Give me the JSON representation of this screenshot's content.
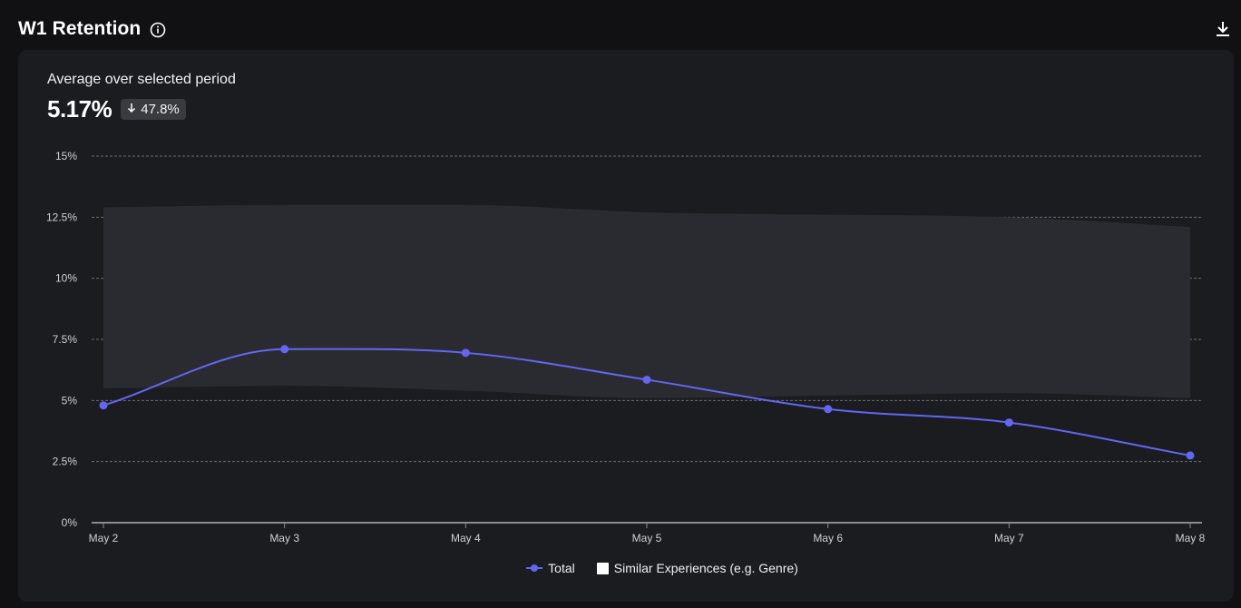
{
  "header": {
    "title": "W1 Retention",
    "info_icon": "info-circle-icon",
    "download_icon": "download-icon"
  },
  "summary": {
    "label": "Average over selected period",
    "value": "5.17%",
    "change": "47.8%",
    "change_direction": "down",
    "change_icon": "arrow-down-icon"
  },
  "colors": {
    "line": "#6366f1",
    "band": "#2a2b30",
    "grid": "#6b6c72",
    "axis": "#8a8b90",
    "legend_box": "#ffffff"
  },
  "chart_data": {
    "type": "line",
    "categories": [
      "May 2",
      "May 3",
      "May 4",
      "May 5",
      "May 6",
      "May 7",
      "May 8"
    ],
    "y_ticks": [
      "0%",
      "2.5%",
      "5%",
      "7.5%",
      "10%",
      "12.5%",
      "15%"
    ],
    "y_tick_values": [
      0,
      2.5,
      5,
      7.5,
      10,
      12.5,
      15
    ],
    "ylim": [
      0,
      15
    ],
    "grid": true,
    "legend_position": "bottom-center",
    "series": [
      {
        "name": "Total",
        "kind": "line",
        "values": [
          4.8,
          7.1,
          6.95,
          5.85,
          4.65,
          4.1,
          2.75
        ]
      },
      {
        "name": "Similar Experiences (e.g. Genre)",
        "kind": "range-band",
        "lower": [
          5.5,
          5.6,
          5.4,
          5.1,
          5.2,
          5.3,
          5.1
        ],
        "upper": [
          12.9,
          13.0,
          13.0,
          12.7,
          12.6,
          12.5,
          12.1
        ]
      }
    ]
  },
  "legend": {
    "items": [
      "Total",
      "Similar Experiences (e.g. Genre)"
    ]
  }
}
